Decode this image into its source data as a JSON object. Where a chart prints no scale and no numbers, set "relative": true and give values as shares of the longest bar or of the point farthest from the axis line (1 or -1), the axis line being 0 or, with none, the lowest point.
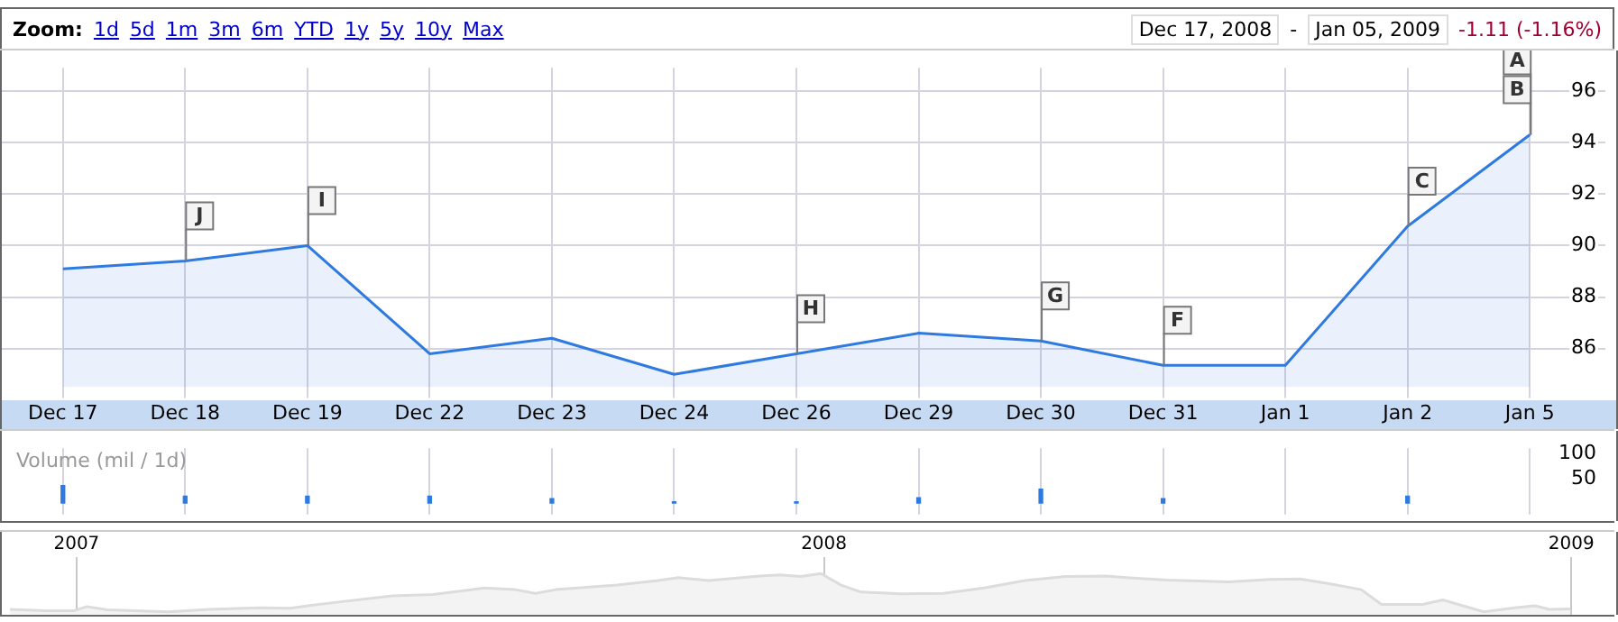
{
  "chart_data": [
    {
      "type": "area",
      "categories": [
        "Dec 17",
        "Dec 18",
        "Dec 19",
        "Dec 22",
        "Dec 23",
        "Dec 24",
        "Dec 26",
        "Dec 29",
        "Dec 30",
        "Dec 31",
        "Jan 1",
        "Jan 2",
        "Jan 5"
      ],
      "series": [
        {
          "color": "#2f7ae0",
          "values": [
            89.1,
            89.4,
            90.0,
            85.8,
            86.4,
            85.0,
            85.8,
            86.6,
            86.3,
            85.35,
            85.35,
            90.75,
            94.3
          ]
        }
      ],
      "ylim": [
        84.5,
        96.9
      ],
      "yticks": [
        86,
        88,
        90,
        92,
        94,
        96
      ],
      "grid": true,
      "legend": false,
      "annotations": [
        "Zoom:",
        "1d",
        "5d",
        "1m",
        "3m",
        "6m",
        "YTD",
        "1y",
        "5y",
        "10y",
        "Max",
        "Dec 17, 2008",
        "-",
        "Jan 05, 2009",
        "-1.11 (-1.16%)",
        {
          "text": "J",
          "x": "Dec 18",
          "y": 89.4
        },
        {
          "text": "I",
          "x": "Dec 19",
          "y": 90.0
        },
        {
          "text": "H",
          "x": "Dec 26",
          "y": 85.8
        },
        {
          "text": "G",
          "x": "Dec 30",
          "y": 86.3
        },
        {
          "text": "F",
          "x": "Dec 31",
          "y": 85.35
        },
        {
          "text": "C",
          "x": "Jan 2",
          "y": 90.75
        },
        {
          "text": "B",
          "x": "Jan 5",
          "y": 94.3
        },
        {
          "text": "A",
          "x": "Jan 5",
          "y": 94.3
        }
      ]
    },
    {
      "type": "bar",
      "title": "Volume (mil / 1d)",
      "categories": [
        null,
        null,
        null,
        null,
        null,
        null,
        null,
        null,
        null,
        null,
        null,
        null,
        null
      ],
      "series": [
        {
          "color": "#2f7ae0",
          "values": [
            36,
            15,
            15,
            15,
            10,
            4,
            4,
            12,
            29,
            10,
            null,
            15,
            null
          ]
        }
      ],
      "ylim": [
        0,
        110
      ],
      "yticks": [
        50,
        100
      ],
      "grid": "x",
      "legend": false
    },
    {
      "type": "area",
      "relative": true,
      "x": [
        2006.911,
        2006.959,
        2006.997,
        2007.014,
        2007.041,
        2007.123,
        2007.177,
        2007.246,
        2007.286,
        2007.314,
        2007.355,
        2007.423,
        2007.477,
        2007.546,
        2007.587,
        2007.614,
        2007.641,
        2007.723,
        2007.778,
        2007.805,
        2007.846,
        2007.914,
        2007.941,
        2007.969,
        2007.996,
        2008.023,
        2008.05,
        2008.105,
        2008.16,
        2008.214,
        2008.269,
        2008.323,
        2008.378,
        2008.405,
        2008.46,
        2008.542,
        2008.596,
        2008.637,
        2008.678,
        2008.719,
        2008.746,
        2008.801,
        2008.828,
        2008.883,
        2008.924,
        2008.951,
        2008.971,
        2008.999
      ],
      "series": [
        {
          "color": "#dcdcdc",
          "values": [
            0.13,
            0.1,
            0.1,
            0.2,
            0.12,
            0.07,
            0.13,
            0.17,
            0.16,
            0.23,
            0.32,
            0.46,
            0.49,
            0.65,
            0.61,
            0.52,
            0.61,
            0.72,
            0.83,
            0.9,
            0.83,
            0.94,
            0.97,
            0.93,
            1.0,
            0.72,
            0.55,
            0.51,
            0.52,
            0.65,
            0.83,
            0.93,
            0.94,
            0.9,
            0.84,
            0.8,
            0.86,
            0.87,
            0.75,
            0.61,
            0.25,
            0.25,
            0.36,
            0.07,
            0.17,
            0.22,
            0.13,
            0.14
          ]
        }
      ],
      "xlim": [
        2006.9,
        2009.06
      ],
      "xticks": [
        2007,
        2008,
        2009
      ],
      "grid": "x",
      "legend": false
    }
  ]
}
